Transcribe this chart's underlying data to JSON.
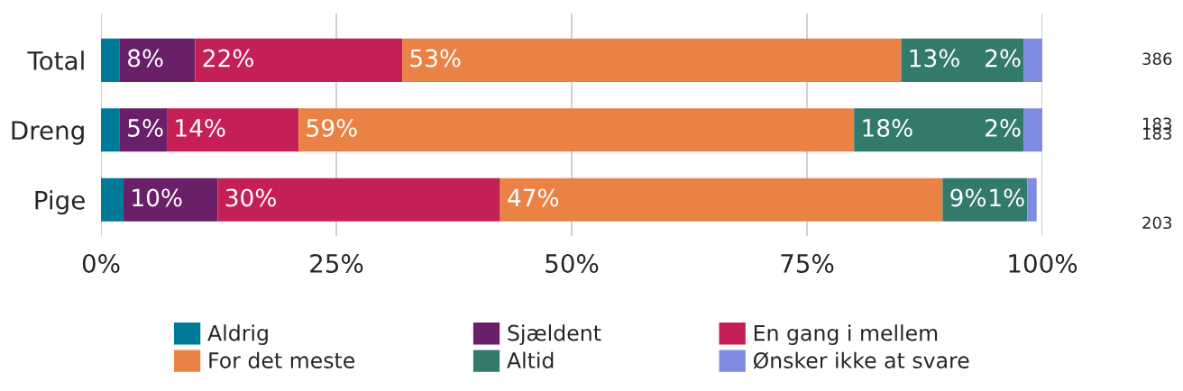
{
  "chart_data": {
    "type": "bar",
    "orientation": "horizontal",
    "stacked": true,
    "categories": [
      "Total",
      "Dreng",
      "Pige"
    ],
    "xlim": [
      0,
      100
    ],
    "xticks": [
      {
        "value": 0,
        "label": "0%"
      },
      {
        "value": 25,
        "label": "25%"
      },
      {
        "value": 50,
        "label": "50%"
      },
      {
        "value": 75,
        "label": "75%"
      },
      {
        "value": 100,
        "label": "100%"
      }
    ],
    "grid": "x",
    "legend": "bottom",
    "series": [
      {
        "name": "Aldrig",
        "color": "#007a99",
        "values": [
          2,
          2,
          2.4
        ],
        "value_labels": [
          null,
          null,
          null
        ]
      },
      {
        "name": "Sjældent",
        "color": "#6a1f69",
        "values": [
          8,
          5,
          10
        ],
        "value_labels": [
          "8%",
          "5%",
          "10%"
        ]
      },
      {
        "name": "En gang i mellem",
        "color": "#c42055",
        "values": [
          22,
          14,
          30
        ],
        "value_labels": [
          "22%",
          "14%",
          "30%"
        ]
      },
      {
        "name": "For det meste",
        "color": "#ea8246",
        "values": [
          53,
          59,
          47
        ],
        "value_labels": [
          "53%",
          "59%",
          "47%"
        ]
      },
      {
        "name": "Altid",
        "color": "#327a6c",
        "values": [
          13,
          18,
          9
        ],
        "value_labels": [
          "13%",
          "18%",
          "9%"
        ]
      },
      {
        "name": "Ønsker ikke at svare",
        "color": "#7f8be0",
        "values": [
          2,
          2,
          1
        ],
        "value_labels": [
          "2%",
          "2%",
          "1%"
        ]
      }
    ],
    "annotations": [
      "386",
      "183",
      "183",
      "203"
    ]
  }
}
